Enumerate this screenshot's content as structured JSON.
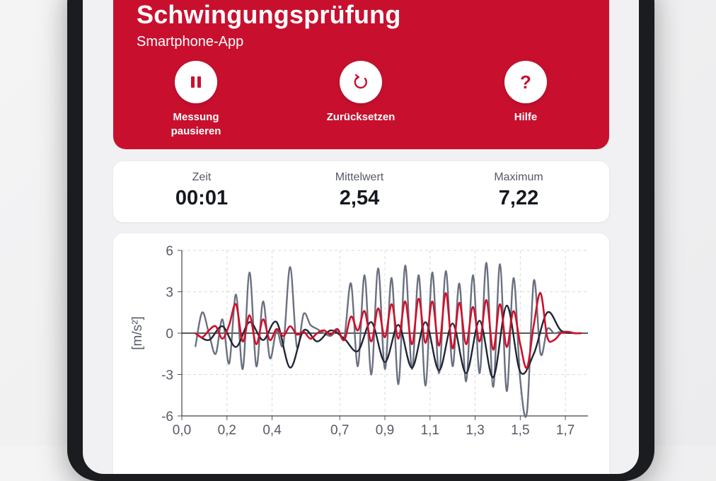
{
  "header": {
    "title": "Schwingungsprüfung",
    "subtitle": "Smartphone-App",
    "actions": [
      {
        "label": "Messung pausieren",
        "icon": "pause-icon"
      },
      {
        "label": "Zurücksetzen",
        "icon": "reset-icon"
      },
      {
        "label": "Hilfe",
        "icon": "help-icon"
      }
    ]
  },
  "stats": {
    "time_label": "Zeit",
    "time_value": "00:01",
    "mean_label": "Mittelwert",
    "mean_value": "2,54",
    "max_label": "Maximum",
    "max_value": "7,22"
  },
  "colors": {
    "brand_red": "#c8102e",
    "series_gray": "#6b7080",
    "series_dark": "#1f2633",
    "series_red": "#d0102a"
  },
  "chart_data": {
    "type": "line",
    "title": "",
    "xlabel": "",
    "ylabel": "[m/s²]",
    "xlim": [
      0,
      1.8
    ],
    "ylim": [
      -6,
      6
    ],
    "x_ticks": [
      0.0,
      0.2,
      0.4,
      0.7,
      0.9,
      1.1,
      1.3,
      1.5,
      1.7
    ],
    "x_tick_labels": [
      "0,0",
      "0,2",
      "0,4",
      "0,7",
      "0,9",
      "1,1",
      "1,3",
      "1,5",
      "1,7"
    ],
    "y_ticks": [
      6,
      3,
      0,
      -3,
      -6
    ],
    "y_tick_labels": [
      "6",
      "3",
      "0",
      "-3",
      "-6"
    ],
    "grid": true,
    "series": [
      {
        "color": "#6b7080",
        "x": [
          0.06,
          0.09,
          0.12,
          0.15,
          0.18,
          0.21,
          0.24,
          0.27,
          0.3,
          0.33,
          0.36,
          0.39,
          0.42,
          0.45,
          0.48,
          0.51,
          0.54,
          0.57,
          0.6,
          0.63,
          0.66,
          0.69,
          0.72,
          0.75,
          0.78,
          0.81,
          0.84,
          0.87,
          0.9,
          0.93,
          0.96,
          0.99,
          1.02,
          1.05,
          1.08,
          1.11,
          1.14,
          1.17,
          1.2,
          1.23,
          1.26,
          1.29,
          1.32,
          1.35,
          1.38,
          1.41,
          1.44,
          1.47,
          1.5,
          1.53,
          1.56,
          1.59,
          1.62,
          1.65,
          1.68,
          1.71,
          1.74,
          1.77
        ],
        "y": [
          -1,
          1.5,
          0,
          -1.5,
          1,
          -2.2,
          2.8,
          -2.6,
          4.4,
          -2.4,
          2.3,
          -1.8,
          0.2,
          -0.8,
          4.8,
          -1,
          1.4,
          0.6,
          0.3,
          0,
          -0.2,
          0.2,
          -0.3,
          3.6,
          -2.4,
          4.2,
          -3,
          4.7,
          -2.6,
          4.0,
          -3.7,
          4.9,
          -2.6,
          4.2,
          -3.8,
          4.4,
          -2.9,
          4.5,
          -2.4,
          3.6,
          -3.5,
          4.2,
          -2.9,
          5.1,
          -3.9,
          5.0,
          -4.2,
          4.0,
          -3.4,
          -5.7,
          3.8,
          -1.5,
          0.3,
          0,
          0.1,
          0.1,
          0,
          0
        ]
      },
      {
        "color": "#1f2633",
        "x": [
          0.06,
          0.12,
          0.18,
          0.24,
          0.3,
          0.36,
          0.42,
          0.48,
          0.54,
          0.6,
          0.66,
          0.72,
          0.78,
          0.84,
          0.9,
          0.96,
          1.02,
          1.08,
          1.14,
          1.2,
          1.26,
          1.32,
          1.38,
          1.44,
          1.5,
          1.56,
          1.62,
          1.68,
          1.74,
          1.77
        ],
        "y": [
          0,
          -0.5,
          0.5,
          -1,
          0.8,
          -0.5,
          0.8,
          -2.5,
          0.2,
          -0.6,
          0.2,
          -0.4,
          -1.3,
          0.8,
          -2.1,
          0.6,
          -2.5,
          0.8,
          -2.7,
          0.7,
          -2.9,
          0.9,
          -3.2,
          2.0,
          -2.8,
          -1.5,
          1.5,
          0.2,
          0,
          0
        ]
      },
      {
        "color": "#d0102a",
        "x": [
          0.06,
          0.09,
          0.12,
          0.15,
          0.18,
          0.21,
          0.24,
          0.27,
          0.3,
          0.33,
          0.36,
          0.39,
          0.42,
          0.45,
          0.48,
          0.51,
          0.54,
          0.57,
          0.6,
          0.63,
          0.66,
          0.69,
          0.72,
          0.75,
          0.78,
          0.81,
          0.84,
          0.87,
          0.9,
          0.93,
          0.96,
          0.99,
          1.02,
          1.05,
          1.08,
          1.11,
          1.14,
          1.17,
          1.2,
          1.23,
          1.26,
          1.29,
          1.32,
          1.35,
          1.38,
          1.41,
          1.44,
          1.47,
          1.5,
          1.53,
          1.56,
          1.59,
          1.62,
          1.65,
          1.68,
          1.71,
          1.74,
          1.77
        ],
        "y": [
          0,
          -0.3,
          0.2,
          0.5,
          -0.4,
          0.6,
          2.1,
          -0.6,
          1.3,
          -0.8,
          1.0,
          -0.5,
          0.3,
          -0.2,
          0.5,
          -0.1,
          0.1,
          -0.4,
          0,
          0.2,
          -0.1,
          0.3,
          -0.5,
          1.2,
          0.2,
          1.6,
          -0.6,
          1.8,
          -0.3,
          2.1,
          -0.4,
          2.3,
          -0.8,
          2.5,
          -0.7,
          2.3,
          -0.9,
          2.9,
          -1.1,
          2.2,
          -0.8,
          1.9,
          -0.6,
          2.4,
          -1.2,
          2.1,
          -1.0,
          1.6,
          -0.8,
          -2.5,
          0.6,
          2.9,
          -0.3,
          -0.5,
          0,
          0.1,
          0,
          0
        ]
      }
    ]
  }
}
